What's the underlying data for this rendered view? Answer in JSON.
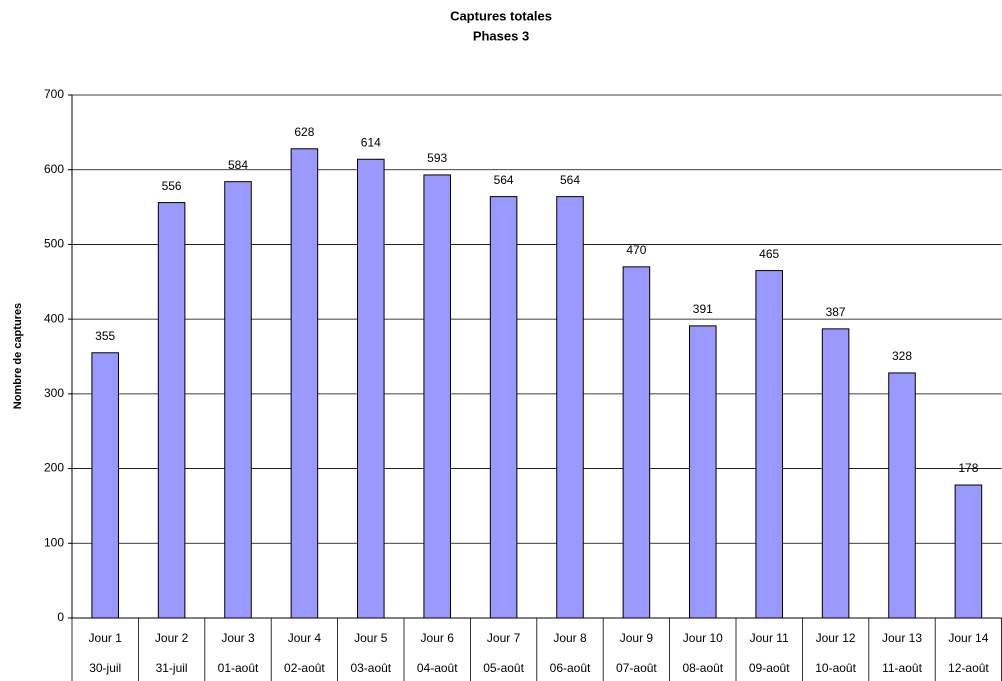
{
  "chart_data": {
    "type": "bar",
    "title": "Captures totales",
    "subtitle": "Phases 3",
    "ylabel": "Nombre de captures",
    "categories": [
      "Jour 1",
      "Jour 2",
      "Jour 3",
      "Jour 4",
      "Jour 5",
      "Jour 6",
      "Jour 7",
      "Jour 8",
      "Jour 9",
      "Jour 10",
      "Jour 11",
      "Jour 12",
      "Jour 13",
      "Jour 14"
    ],
    "dates": [
      "30-juil",
      "31-juil",
      "01-août",
      "02-août",
      "03-août",
      "04-août",
      "05-août",
      "06-août",
      "07-août",
      "08-août",
      "09-août",
      "10-août",
      "11-août",
      "12-août"
    ],
    "values": [
      355,
      556,
      584,
      628,
      614,
      593,
      564,
      564,
      470,
      391,
      465,
      387,
      328,
      178
    ],
    "color": "#9999ff",
    "ylim": [
      0,
      700
    ],
    "yticks": [
      0,
      100,
      200,
      300,
      400,
      500,
      600,
      700
    ],
    "grid": true
  }
}
